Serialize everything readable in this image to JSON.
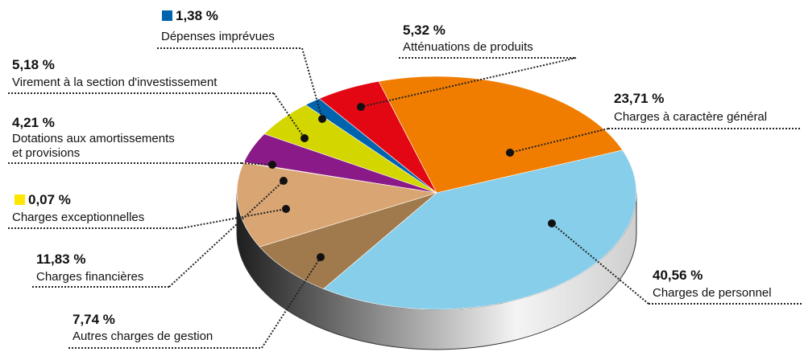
{
  "chart_data": {
    "type": "pie3d",
    "categories": [
      "Atténuations de produits",
      "Charges à caractère général",
      "Charges de personnel",
      "Autres charges de gestion",
      "Charges financières",
      "Charges exceptionnelles",
      "Dotations aux amortissements\net provisions",
      "Virement à la section d'investissement",
      "Dépenses imprévues"
    ],
    "values": [
      5.32,
      23.71,
      40.56,
      7.74,
      11.83,
      0.07,
      4.21,
      5.18,
      1.38
    ],
    "value_labels": [
      "5,32 %",
      "23,71 %",
      "40,56 %",
      "7,74 %",
      "11,83 %",
      "0,07 %",
      "4,21 %",
      "5,18 %",
      "1,38 %"
    ],
    "colors": [
      "#e30613",
      "#f07d00",
      "#87ceeb",
      "#a07a4c",
      "#d9a673",
      "#ffe600",
      "#8a1a87",
      "#d4d600",
      "#0063ad"
    ]
  }
}
